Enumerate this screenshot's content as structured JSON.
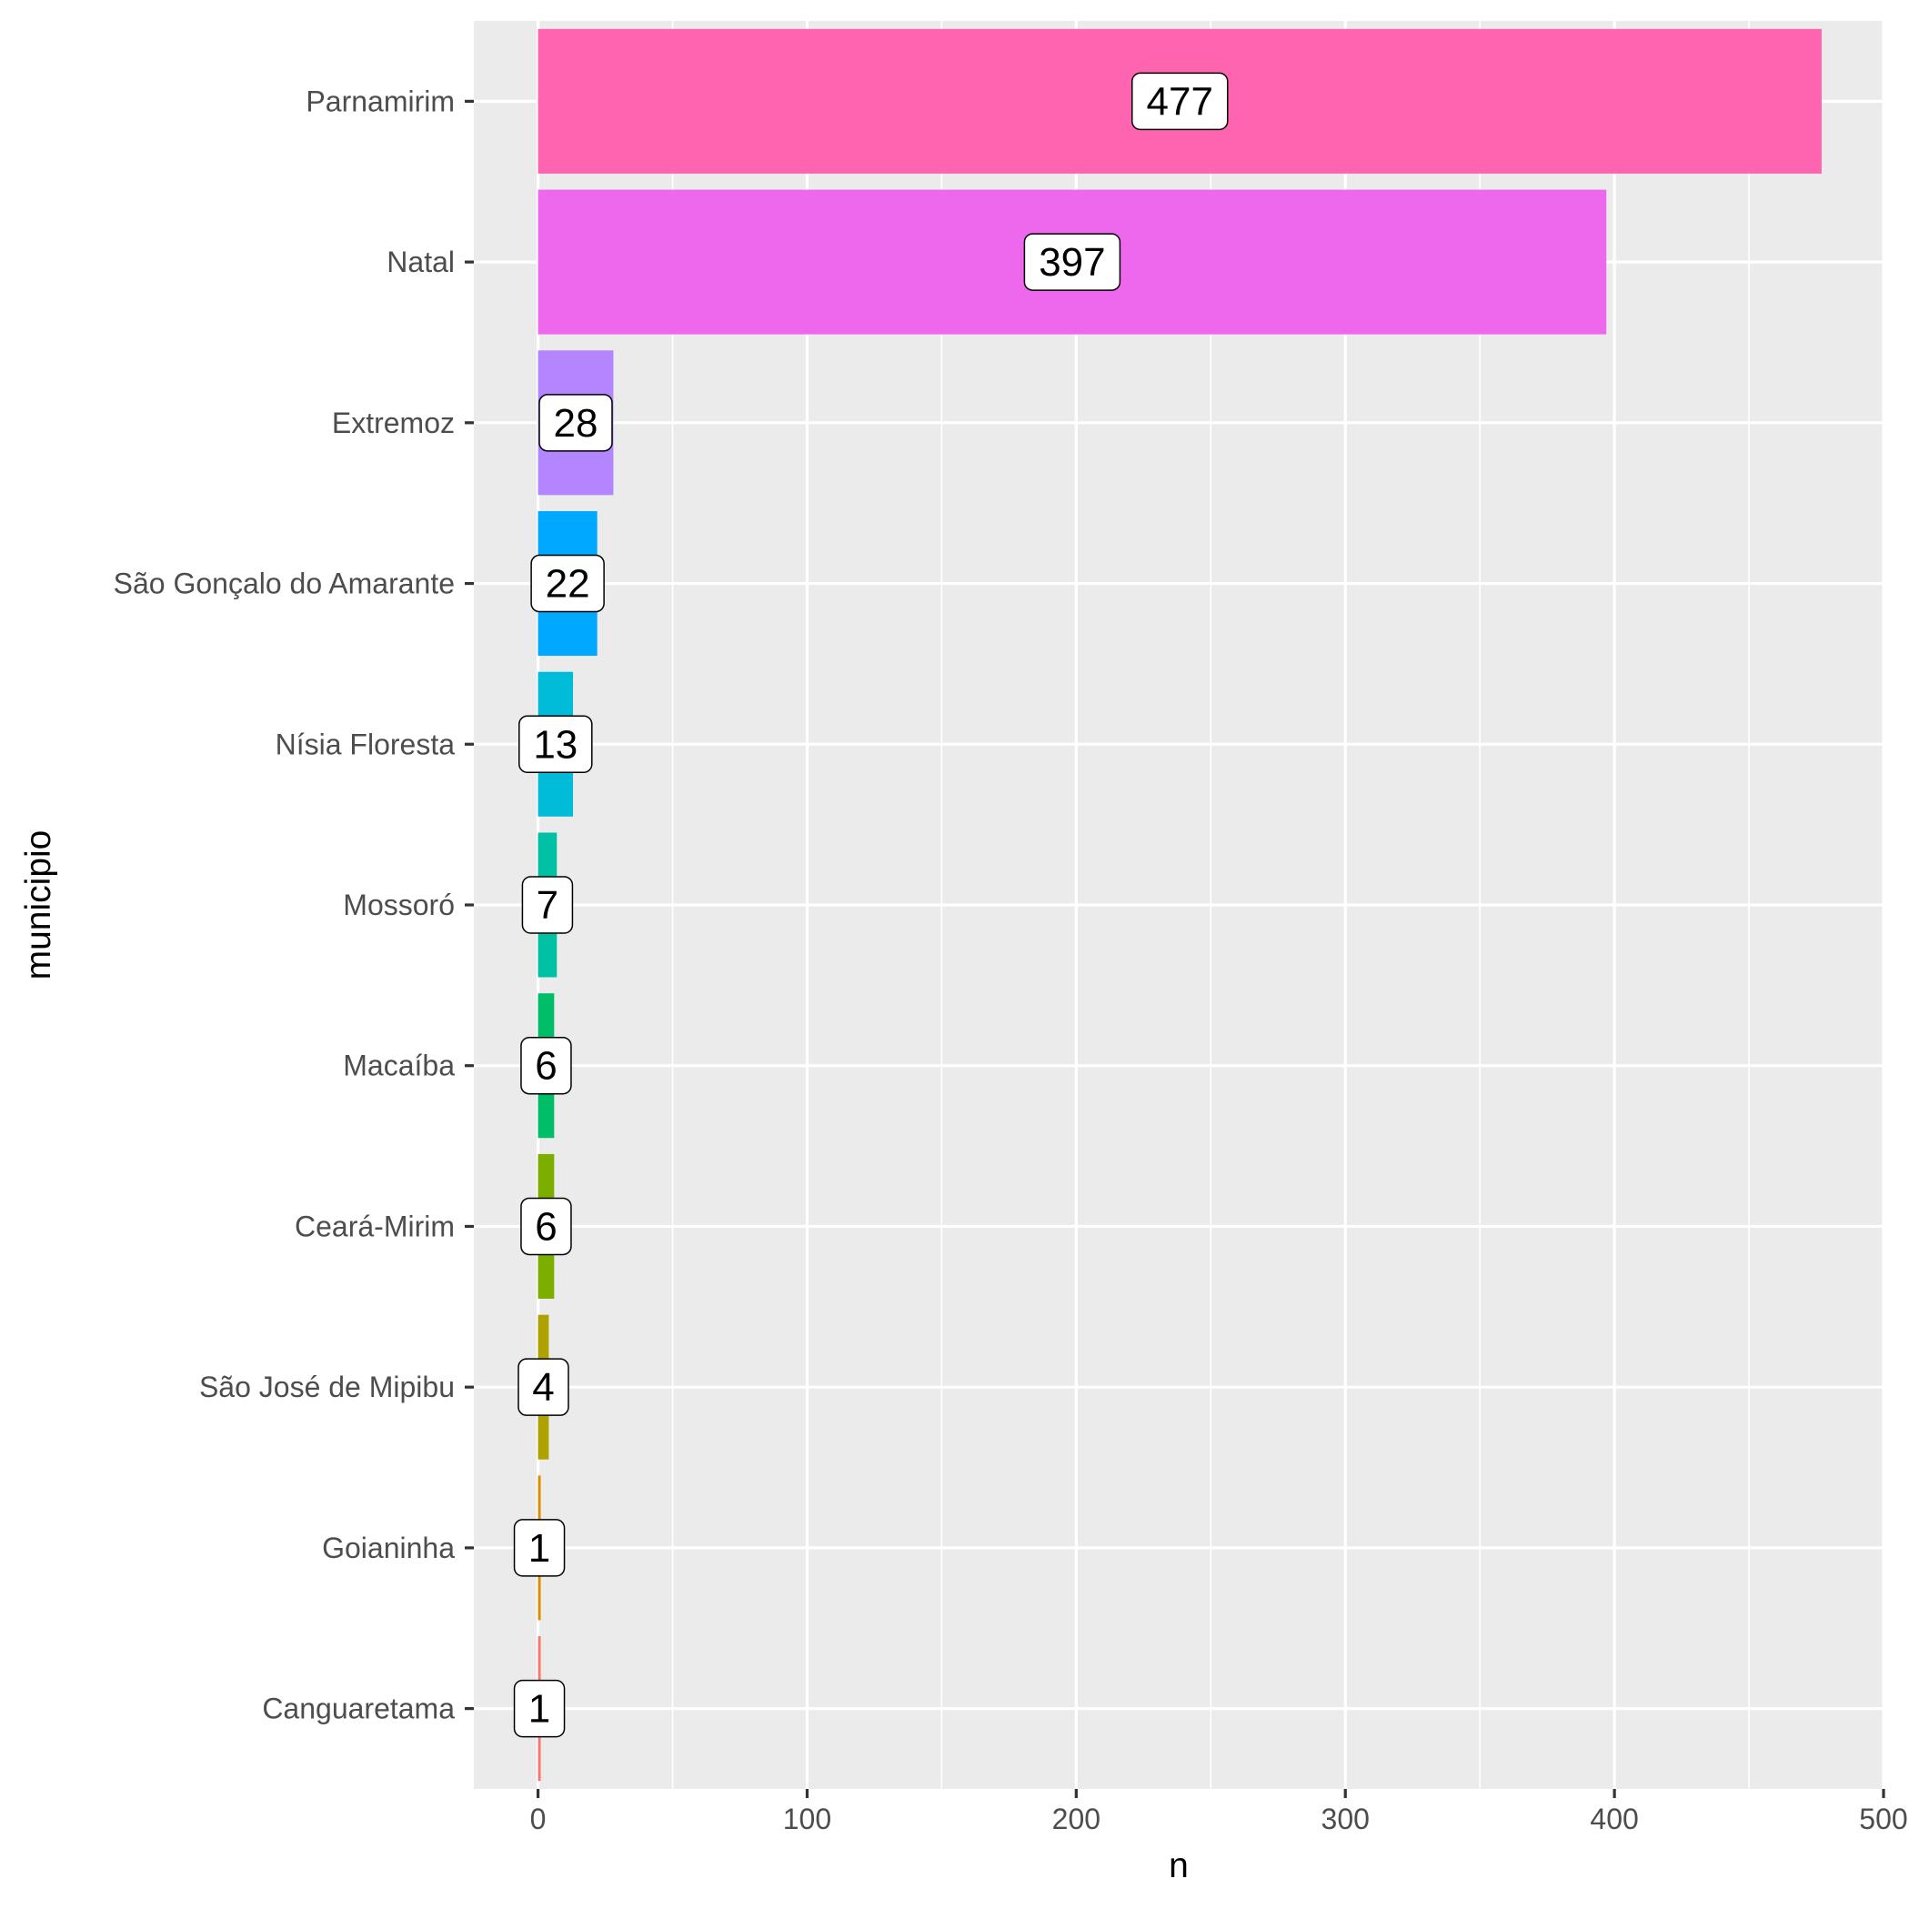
{
  "chart_data": {
    "type": "bar",
    "orientation": "horizontal",
    "xlabel": "n",
    "ylabel": "municipio",
    "xlim": [
      -23.85,
      500
    ],
    "x_ticks": [
      0,
      100,
      200,
      300,
      400,
      500
    ],
    "grid": true,
    "legend": "none",
    "categories": [
      "Parnamirim",
      "Natal",
      "Extremoz",
      "São Gonçalo do Amarante",
      "Nísia Floresta",
      "Mossoró",
      "Macaíba",
      "Ceará-Mirim",
      "São José de Mipibu",
      "Goianinha",
      "Canguaretama"
    ],
    "values": [
      477,
      397,
      28,
      22,
      13,
      7,
      6,
      6,
      4,
      1,
      1
    ],
    "colors": [
      "#FF64B0",
      "#ED68ED",
      "#B385FF",
      "#00A9FF",
      "#00BCD8",
      "#00C1A3",
      "#00BE67",
      "#7CAE00",
      "#AEA200",
      "#DE8C00",
      "#F8766D"
    ]
  }
}
